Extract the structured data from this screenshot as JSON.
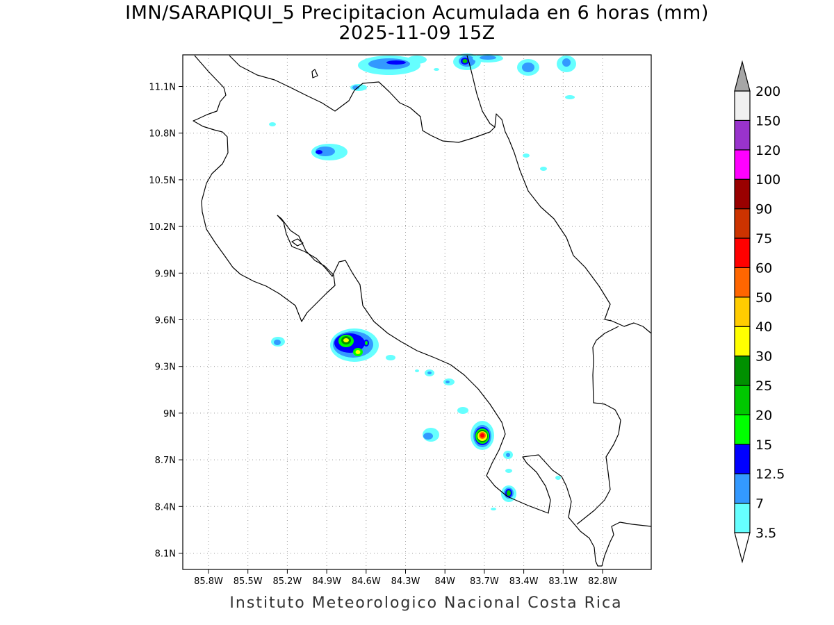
{
  "title": {
    "line1": "IMN/SARAPIQUI_5 Precipitacion Acumulada en 6 horas (mm)",
    "line2": "2025-11-09 15Z"
  },
  "footer": "Instituto Meteorologico Nacional Costa Rica",
  "map": {
    "lon_range": [
      -86.0,
      -83.0
    ],
    "lat_range": [
      8.0,
      11.3
    ],
    "x_ticks": [
      "85.8W",
      "85.5W",
      "85.2W",
      "84.9W",
      "84.6W",
      "84.3W",
      "84W",
      "83.7W",
      "83.4W",
      "83.1W",
      "82.8W"
    ],
    "y_ticks": [
      "11.1N",
      "10.8N",
      "10.5N",
      "10.2N",
      "9.9N",
      "9.6N",
      "9.3N",
      "9N",
      "8.7N",
      "8.4N",
      "8.1N"
    ],
    "grid": "dotted"
  },
  "legend": {
    "levels": [
      "3.5",
      "7",
      "12.5",
      "15",
      "20",
      "25",
      "30",
      "40",
      "50",
      "60",
      "75",
      "90",
      "100",
      "120",
      "150",
      "200"
    ],
    "colors": [
      "#66ffff",
      "#3399ff",
      "#0000ff",
      "#00ff00",
      "#00c800",
      "#009000",
      "#ffff00",
      "#ffcc00",
      "#ff6600",
      "#ff0000",
      "#cc3300",
      "#990000",
      "#ff00ff",
      "#9933cc",
      "#f0f0f0",
      "#a6a6a6"
    ]
  }
}
